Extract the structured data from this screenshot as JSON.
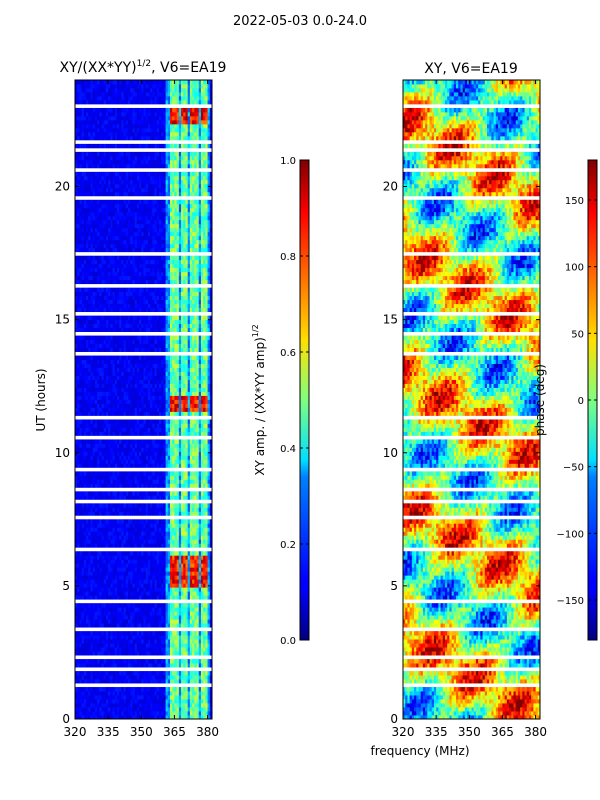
{
  "suptitle": "2022-05-03 0.0-24.0",
  "chart_data": [
    {
      "type": "heatmap",
      "title_main": "XY/(XX*YY)",
      "title_exp": "1/2",
      "title_tail": ", V6=EA19",
      "xlabel": "",
      "ylabel": "UT (hours)",
      "xlim": [
        320,
        382
      ],
      "ylim": [
        0,
        24
      ],
      "xticks": [
        320,
        335,
        350,
        365,
        380
      ],
      "yticks": [
        0,
        5,
        10,
        15,
        20
      ],
      "colorbar": {
        "label_main": "XY amp. / (XX*YY amp)",
        "label_exp": "1/2",
        "range": [
          0.0,
          1.0
        ],
        "ticks": [
          "0.0",
          "0.2",
          "0.4",
          "0.6",
          "0.8",
          "1.0"
        ],
        "tick_values": [
          0.0,
          0.2,
          0.4,
          0.6,
          0.8,
          1.0
        ],
        "colormap": "jet"
      },
      "bright_channels_mhz": [
        [
          363,
          367
        ],
        [
          368,
          371
        ],
        [
          372,
          376
        ],
        [
          377,
          380
        ]
      ],
      "peak_hours": [
        5.3,
        5.8,
        11.8,
        22.7
      ]
    },
    {
      "type": "heatmap",
      "title": "XY, V6=EA19",
      "xlabel": "frequency (MHz)",
      "xlim": [
        320,
        382
      ],
      "ylim": [
        0,
        24
      ],
      "xticks": [
        320,
        335,
        350,
        365,
        380
      ],
      "yticks": [
        0,
        5,
        10,
        15,
        20
      ],
      "colorbar": {
        "label": "phase (deg)",
        "range": [
          -180,
          180
        ],
        "ticks": [
          "−150",
          "−100",
          "−50",
          "0",
          "50",
          "100",
          "150"
        ],
        "tick_values": [
          -150,
          -100,
          -50,
          0,
          50,
          100,
          150
        ],
        "colormap": "jet"
      }
    }
  ],
  "gap_hours": [
    0.45,
    0.9,
    1.3,
    1.5,
    1.9,
    2.3,
    3.4,
    3.6,
    4.4,
    4.5,
    6.3,
    6.4,
    7.2,
    7.6,
    8.2,
    8.6,
    9.4,
    10.6,
    11.3,
    12.3,
    12.6,
    12.9,
    13.7,
    14.1,
    14.5,
    15.2,
    16.3,
    16.8,
    17.1,
    17.5,
    18.3,
    19.6,
    20.6,
    21.4,
    21.7,
    22.2,
    22.5,
    23.0,
    23.4
  ]
}
